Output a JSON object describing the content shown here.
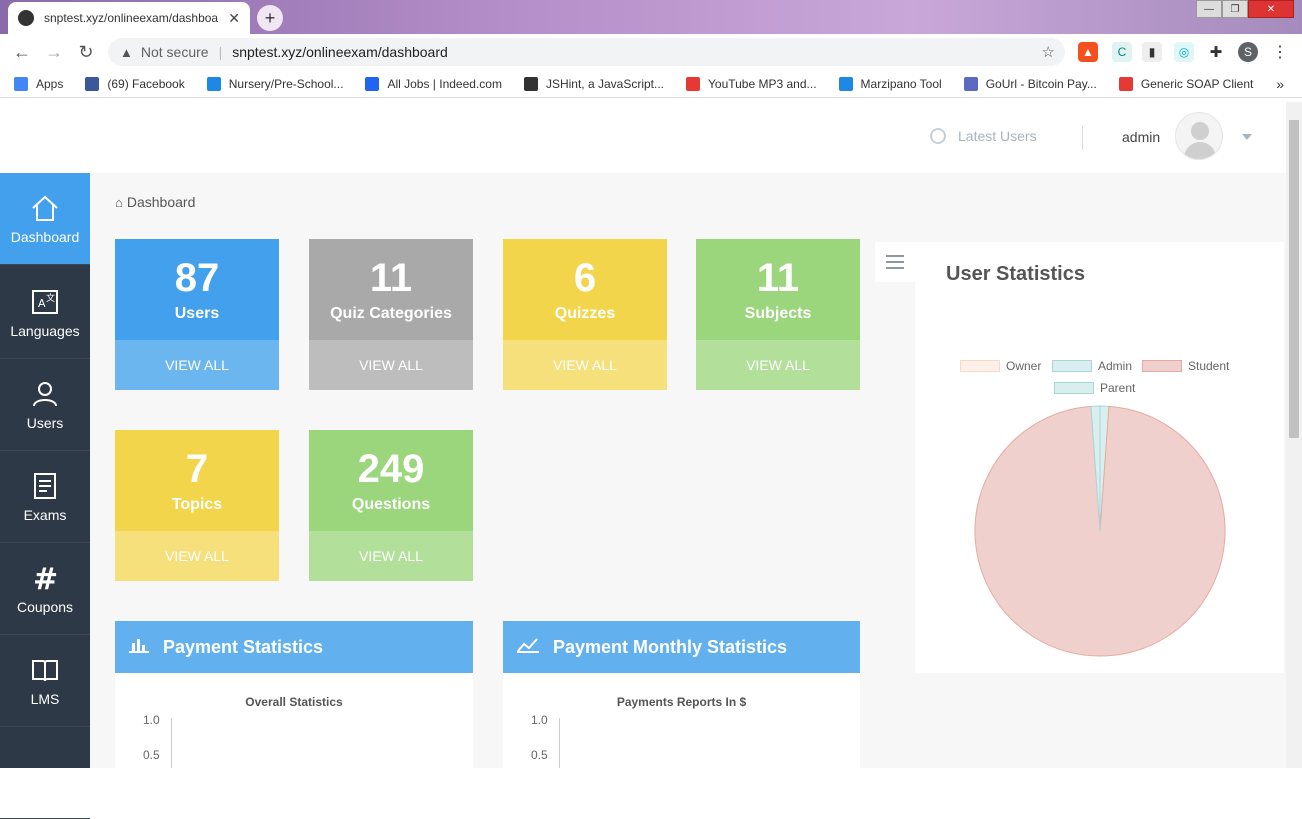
{
  "browser": {
    "tab_title": "snptest.xyz/onlineexam/dashboa",
    "tab_close": "✕",
    "new_tab": "+",
    "not_secure": "Not secure",
    "url": "snptest.xyz/onlineexam/dashboard",
    "profile_initial": "S",
    "bookmarks": [
      {
        "label": "Apps",
        "color": "#4285f4"
      },
      {
        "label": "(69) Facebook",
        "color": "#3b5998"
      },
      {
        "label": "Nursery/Pre-School...",
        "color": "#1e88e5"
      },
      {
        "label": "All Jobs | Indeed.com",
        "color": "#2164f3"
      },
      {
        "label": "JSHint, a JavaScript...",
        "color": "#333333"
      },
      {
        "label": "YouTube MP3 and...",
        "color": "#e53935"
      },
      {
        "label": "Marzipano Tool",
        "color": "#1e88e5"
      },
      {
        "label": "GoUrl - Bitcoin Pay...",
        "color": "#5c6bc0"
      },
      {
        "label": "Generic SOAP Client",
        "color": "#e53935"
      }
    ],
    "more_bookmarks": "»"
  },
  "header": {
    "latest_users": "Latest Users",
    "admin_name": "admin"
  },
  "sidebar": {
    "items": [
      {
        "label": "Dashboard",
        "icon": "home-icon"
      },
      {
        "label": "Languages",
        "icon": "translate-icon"
      },
      {
        "label": "Users",
        "icon": "users-icon"
      },
      {
        "label": "Exams",
        "icon": "exams-icon"
      },
      {
        "label": "Coupons",
        "icon": "hash-icon"
      },
      {
        "label": "LMS",
        "icon": "book-icon"
      }
    ]
  },
  "breadcrumb": {
    "label": "Dashboard"
  },
  "cards": [
    {
      "number": "87",
      "label": "Users",
      "action": "VIEW ALL",
      "color": "blue"
    },
    {
      "number": "11",
      "label": "Quiz Categories",
      "action": "VIEW ALL",
      "color": "gray"
    },
    {
      "number": "6",
      "label": "Quizzes",
      "action": "VIEW ALL",
      "color": "yellow"
    },
    {
      "number": "11",
      "label": "Subjects",
      "action": "VIEW ALL",
      "color": "green"
    },
    {
      "number": "7",
      "label": "Topics",
      "action": "VIEW ALL",
      "color": "yellow"
    },
    {
      "number": "249",
      "label": "Questions",
      "action": "VIEW ALL",
      "color": "green"
    }
  ],
  "panels": {
    "payment": {
      "title": "Payment Statistics",
      "chart_title": "Overall Statistics",
      "ticks": [
        "1.0",
        "0.5"
      ]
    },
    "monthly": {
      "title": "Payment Monthly Statistics",
      "chart_title": "Payments Reports In $",
      "ticks": [
        "1.0",
        "0.5"
      ]
    }
  },
  "user_statistics": {
    "title": "User Statistics"
  },
  "chart_data": {
    "type": "pie",
    "title": "User Statistics",
    "labels": [
      "Owner",
      "Admin",
      "Student",
      "Parent"
    ],
    "values": [
      0,
      1,
      85,
      1
    ],
    "colors": [
      "#fdf0e8",
      "#d9efef",
      "#efd0cc",
      "#d9efef"
    ],
    "borders": [
      "#f7d9c6",
      "#a9d6d6",
      "#e6aaa2",
      "#a9d6d6"
    ],
    "legend_position": "top"
  }
}
